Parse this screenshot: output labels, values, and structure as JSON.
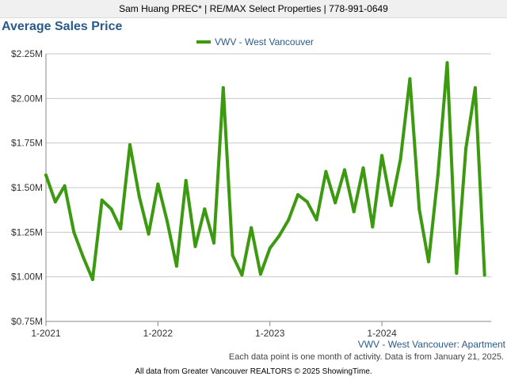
{
  "header": {
    "agent_line": "Sam Huang PREC* | RE/MAX Select Properties | 778-991-0649"
  },
  "footer": {
    "note": "Each data point is one month of activity. Data is from January 21, 2025.",
    "source": "All data from Greater Vancouver REALTORS © 2025 ShowingTime."
  },
  "colors": {
    "series": "#3c9a10",
    "grid": "#c8c8c8",
    "title": "#2a5a8a"
  },
  "chart_data": {
    "type": "line",
    "title": "Average Sales Price",
    "subtitle": "VWV - West Vancouver: Apartment",
    "legend_position": "top-center",
    "grid": true,
    "ylim": [
      750000,
      2250000
    ],
    "y_ticks": [
      750000,
      1000000,
      1250000,
      1500000,
      1750000,
      2000000,
      2250000
    ],
    "y_tick_labels": [
      "$0.75M",
      "$1.00M",
      "$1.25M",
      "$1.50M",
      "$1.75M",
      "$2.00M",
      "$2.25M"
    ],
    "x_ticks": [
      "2021-01",
      "2022-01",
      "2023-01",
      "2024-01"
    ],
    "x_tick_labels": [
      "1-2021",
      "1-2022",
      "1-2023",
      "1-2024"
    ],
    "x": [
      "2021-01",
      "2021-02",
      "2021-03",
      "2021-04",
      "2021-05",
      "2021-06",
      "2021-07",
      "2021-08",
      "2021-09",
      "2021-10",
      "2021-11",
      "2021-12",
      "2022-01",
      "2022-02",
      "2022-03",
      "2022-04",
      "2022-05",
      "2022-06",
      "2022-07",
      "2022-08",
      "2022-09",
      "2022-10",
      "2022-11",
      "2022-12",
      "2023-01",
      "2023-02",
      "2023-03",
      "2023-04",
      "2023-05",
      "2023-06",
      "2023-07",
      "2023-08",
      "2023-09",
      "2023-10",
      "2023-11",
      "2023-12",
      "2024-01",
      "2024-02",
      "2024-03",
      "2024-04",
      "2024-05",
      "2024-06",
      "2024-07",
      "2024-08",
      "2024-09",
      "2024-10",
      "2024-11",
      "2024-12"
    ],
    "series": [
      {
        "name": "VWV - West Vancouver",
        "values": [
          1570000,
          1420000,
          1510000,
          1250000,
          1110000,
          985000,
          1430000,
          1380000,
          1270000,
          1740000,
          1450000,
          1240000,
          1520000,
          1310000,
          1060000,
          1540000,
          1170000,
          1380000,
          1190000,
          2060000,
          1120000,
          1010000,
          1275000,
          1015000,
          1160000,
          1230000,
          1320000,
          1460000,
          1420000,
          1320000,
          1590000,
          1415000,
          1600000,
          1365000,
          1610000,
          1280000,
          1680000,
          1400000,
          1660000,
          2110000,
          1380000,
          1085000,
          1570000,
          2200000,
          1020000,
          1720000,
          2060000,
          1010000
        ]
      }
    ]
  }
}
